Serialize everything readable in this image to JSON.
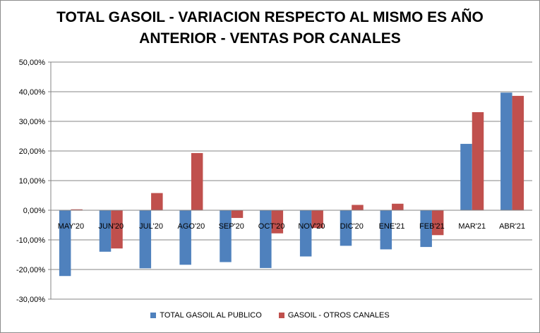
{
  "chart_data": {
    "type": "bar",
    "title": "TOTAL GASOIL - VARIACION RESPECTO AL MISMO ES AÑO ANTERIOR - VENTAS POR CANALES",
    "title_lines": [
      "TOTAL GASOIL - VARIACION RESPECTO AL MISMO ES AÑO",
      "ANTERIOR - VENTAS POR CANALES"
    ],
    "categories": [
      "MAY'20",
      "JUN'20",
      "JUL'20",
      "AGO'20",
      "SEP'20",
      "OCT'20",
      "NOV'20",
      "DIC'20",
      "ENE'21",
      "FEB'21",
      "MAR'21",
      "ABR'21"
    ],
    "series": [
      {
        "name": "TOTAL GASOIL AL PUBLICO",
        "color": "#4f81bd",
        "values": [
          -22.2,
          -14.0,
          -19.6,
          -18.4,
          -17.5,
          -19.5,
          -15.6,
          -12.0,
          -13.2,
          -12.4,
          22.4,
          39.7
        ]
      },
      {
        "name": "GASOIL - OTROS CANALES",
        "color": "#c0504d",
        "values": [
          0.3,
          -12.9,
          5.8,
          19.3,
          -2.6,
          -7.8,
          -6.0,
          1.8,
          2.2,
          -8.4,
          33.1,
          38.6
        ]
      }
    ],
    "ylim": [
      -30,
      50
    ],
    "yticks": [
      -30,
      -20,
      -10,
      0,
      10,
      20,
      30,
      40,
      50
    ],
    "ytick_labels": [
      "-30,00%",
      "-20,00%",
      "-10,00%",
      "0,00%",
      "10,00%",
      "20,00%",
      "30,00%",
      "40,00%",
      "50,00%"
    ],
    "xlabel": "",
    "ylabel": "",
    "grid": true,
    "legend_position": "bottom"
  }
}
